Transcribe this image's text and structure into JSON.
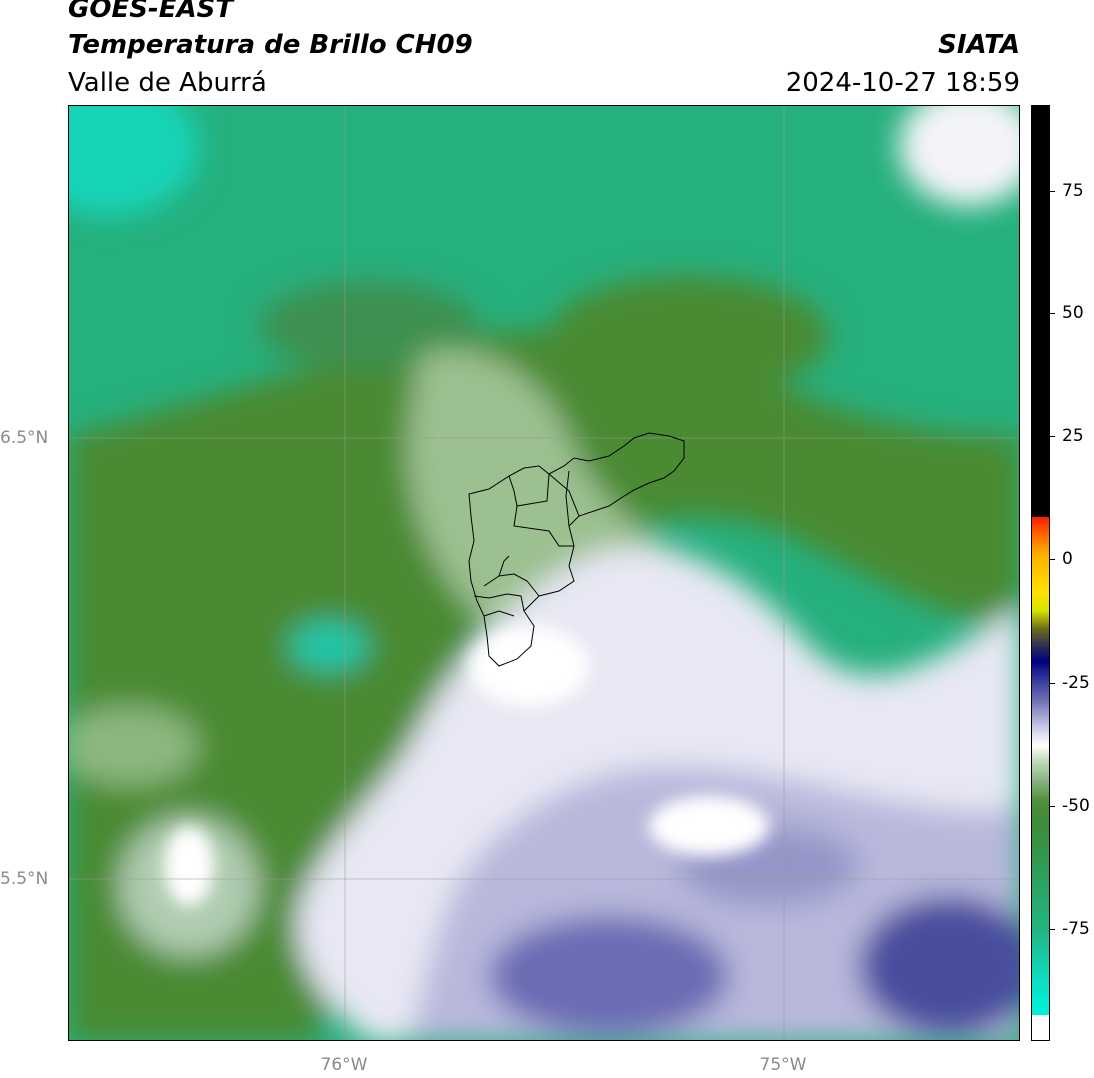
{
  "header": {
    "title_line1": "GOES-EAST",
    "title_line2": "Temperatura de Brillo CH09",
    "brand": "SIATA",
    "region": "Valle de Aburrá",
    "datetime": "2024-10-27 18:59"
  },
  "map": {
    "lat_labels": [
      "6.5°N",
      "5.5°N"
    ],
    "lon_labels": [
      "76°W",
      "75°W"
    ],
    "colors": {
      "dark_green": "#4a8a32",
      "teal": "#26b07e",
      "cyan": "#12d4b8",
      "white": "#ffffff",
      "lavender": "#c8c8e4",
      "blue": "#5a5ea8",
      "navy": "#2a2c8c",
      "boundary": "#000000",
      "gridline": "#9a9a9a"
    }
  },
  "colorbar": {
    "tick_labels": [
      "75",
      "50",
      "25",
      "0",
      "-25",
      "-50",
      "-75"
    ],
    "colors": [
      "#000000",
      "#ff1a00",
      "#ffe000",
      "#000080",
      "#ffffff",
      "#3d8c3a",
      "#00f0dd"
    ]
  }
}
